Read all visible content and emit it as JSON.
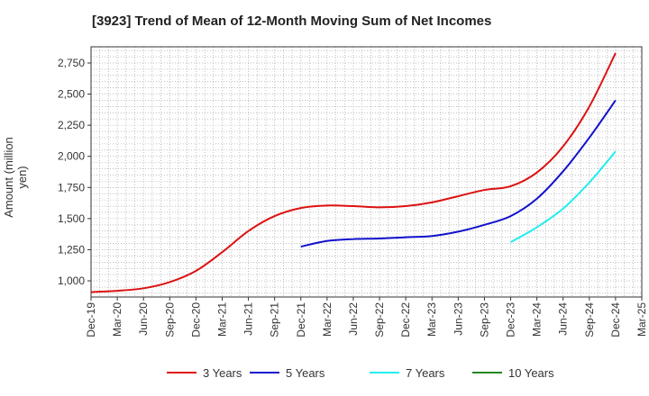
{
  "chart_data": {
    "type": "line",
    "title": "[3923]  Trend of Mean of 12-Month Moving Sum of Net Incomes",
    "xlabel": "",
    "ylabel": "Amount (million yen)",
    "x_ticks": [
      "Dec-19",
      "Mar-20",
      "Jun-20",
      "Sep-20",
      "Dec-20",
      "Mar-21",
      "Jun-21",
      "Sep-21",
      "Dec-21",
      "Mar-22",
      "Jun-22",
      "Sep-22",
      "Dec-22",
      "Mar-23",
      "Jun-23",
      "Sep-23",
      "Dec-23",
      "Mar-24",
      "Jun-24",
      "Sep-24",
      "Dec-24",
      "Mar-25"
    ],
    "y_ticks": [
      1000,
      1250,
      1500,
      1750,
      2000,
      2250,
      2500,
      2750
    ],
    "y_tick_labels": [
      "1,000",
      "1,250",
      "1,500",
      "1,750",
      "2,000",
      "2,250",
      "2,500",
      "2,750"
    ],
    "ylim": [
      870,
      2880
    ],
    "grid": true,
    "legend_position": "bottom",
    "series": [
      {
        "name": "3 Years",
        "color": "#dd1111",
        "points": [
          [
            "Dec-19",
            910
          ],
          [
            "Mar-20",
            920
          ],
          [
            "Jun-20",
            940
          ],
          [
            "Sep-20",
            990
          ],
          [
            "Dec-20",
            1080
          ],
          [
            "Mar-21",
            1230
          ],
          [
            "Jun-21",
            1400
          ],
          [
            "Sep-21",
            1520
          ],
          [
            "Dec-21",
            1585
          ],
          [
            "Mar-22",
            1605
          ],
          [
            "Jun-22",
            1600
          ],
          [
            "Sep-22",
            1590
          ],
          [
            "Dec-22",
            1600
          ],
          [
            "Mar-23",
            1630
          ],
          [
            "Jun-23",
            1680
          ],
          [
            "Sep-23",
            1730
          ],
          [
            "Dec-23",
            1760
          ],
          [
            "Mar-24",
            1870
          ],
          [
            "Jun-24",
            2080
          ],
          [
            "Sep-24",
            2400
          ],
          [
            "Dec-24",
            2830
          ]
        ]
      },
      {
        "name": "5 Years",
        "color": "#1111cc",
        "points": [
          [
            "Dec-21",
            1275
          ],
          [
            "Mar-22",
            1320
          ],
          [
            "Jun-22",
            1335
          ],
          [
            "Sep-22",
            1340
          ],
          [
            "Dec-22",
            1350
          ],
          [
            "Mar-23",
            1360
          ],
          [
            "Jun-23",
            1395
          ],
          [
            "Sep-23",
            1450
          ],
          [
            "Dec-23",
            1520
          ],
          [
            "Mar-24",
            1660
          ],
          [
            "Jun-24",
            1880
          ],
          [
            "Sep-24",
            2150
          ],
          [
            "Dec-24",
            2450
          ]
        ]
      },
      {
        "name": "7 Years",
        "color": "#22eeee",
        "points": [
          [
            "Dec-23",
            1310
          ],
          [
            "Mar-24",
            1430
          ],
          [
            "Jun-24",
            1580
          ],
          [
            "Sep-24",
            1790
          ],
          [
            "Dec-24",
            2040
          ]
        ]
      },
      {
        "name": "10 Years",
        "color": "#228822",
        "points": []
      }
    ]
  }
}
